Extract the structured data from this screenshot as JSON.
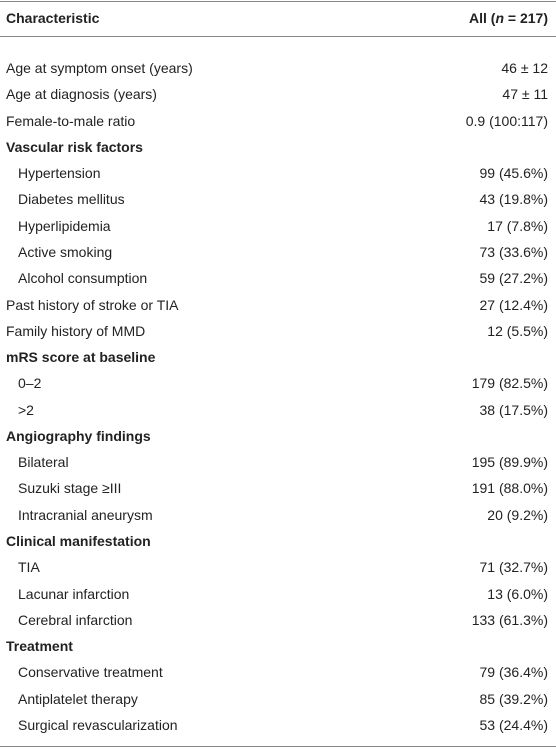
{
  "table": {
    "header": {
      "label": "Characteristic",
      "value": {
        "before": "All (",
        "variable": "n",
        "after": " = 217)"
      }
    },
    "rows": [
      {
        "label": "Age at symptom onset (years)",
        "value": "46 ± 12"
      },
      {
        "label": "Age at diagnosis (years)",
        "value": "47 ± 11"
      },
      {
        "label": "Female-to-male ratio",
        "value": "0.9 (100:117)"
      },
      {
        "heading": "Vascular risk factors",
        "items": [
          {
            "label": "Hypertension",
            "value": "99 (45.6%)"
          },
          {
            "label": "Diabetes mellitus",
            "value": "43 (19.8%)"
          },
          {
            "label": "Hyperlipidemia",
            "value": "17 (7.8%)"
          },
          {
            "label": "Active smoking",
            "value": "73 (33.6%)"
          },
          {
            "label": "Alcohol consumption",
            "value": "59 (27.2%)"
          }
        ]
      },
      {
        "label": "Past history of stroke or TIA",
        "value": "27 (12.4%)"
      },
      {
        "label": "Family history of MMD",
        "value": "12 (5.5%)"
      },
      {
        "heading": "mRS score at baseline",
        "items": [
          {
            "label": "0–2",
            "value": "179 (82.5%)"
          },
          {
            "label": ">2",
            "value": "38 (17.5%)"
          }
        ]
      },
      {
        "heading": "Angiography findings",
        "items": [
          {
            "label": "Bilateral",
            "value": "195 (89.9%)"
          },
          {
            "label": "Suzuki stage ≥III",
            "value": "191 (88.0%)"
          },
          {
            "label": "Intracranial aneurysm",
            "value": "20 (9.2%)"
          }
        ]
      },
      {
        "heading": "Clinical manifestation",
        "items": [
          {
            "label": "TIA",
            "value": "71 (32.7%)"
          },
          {
            "label": "Lacunar infarction",
            "value": "13 (6.0%)"
          },
          {
            "label": "Cerebral infarction",
            "value": "133 (61.3%)"
          }
        ]
      },
      {
        "heading": "Treatment",
        "items": [
          {
            "label": "Conservative treatment",
            "value": "79 (36.4%)"
          },
          {
            "label": "Antiplatelet therapy",
            "value": "85 (39.2%)"
          },
          {
            "label": "Surgical revascularization",
            "value": "53 (24.4%)"
          }
        ]
      }
    ]
  }
}
